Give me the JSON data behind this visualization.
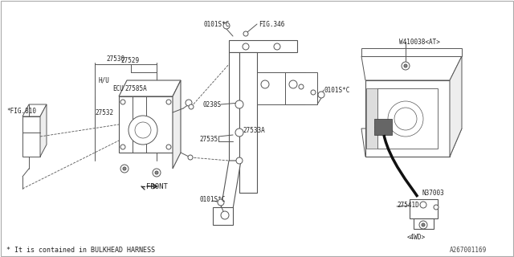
{
  "bg_color": "#ffffff",
  "line_color": "#555555",
  "dark_line": "#333333",
  "labels": {
    "fig810": "*FIG.810",
    "27530": "27530",
    "27529": "27529",
    "hu": "H/U",
    "ecu": "ECU",
    "27585A": "27585A",
    "27532": "27532",
    "0101SC_top": "0101S*C",
    "fig346": "FIG.346",
    "0238S": "0238S",
    "27533A": "27533A",
    "27535": "27535",
    "0101SC_mid": "0101S*C",
    "0101SC_bot": "0101S*C",
    "W410038AT": "W410038<AT>",
    "N37003": "N37003",
    "27541D": "27541D",
    "4WD": "<4WD>",
    "front": "FRONT",
    "footnote": "* It is contained in BULKHEAD HARNESS",
    "diagram_id": "A267001169"
  },
  "fs": 5.5,
  "fs_sm": 5.0
}
